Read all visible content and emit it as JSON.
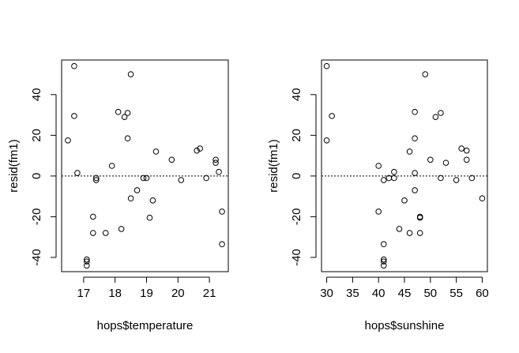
{
  "chart_data": [
    {
      "type": "scatter",
      "xlabel": "hops$temperature",
      "ylabel": "resid(fm1)",
      "xlim": [
        16.3,
        21.6
      ],
      "ylim": [
        -47,
        57
      ],
      "xticks": [
        17,
        18,
        19,
        20,
        21
      ],
      "xtick_labels": [
        "17",
        "18",
        "19",
        "20",
        "21"
      ],
      "yticks": [
        -40,
        -20,
        0,
        20,
        40
      ],
      "ytick_labels": [
        "-40",
        "-20",
        "0",
        "20",
        "40"
      ],
      "hline": 0,
      "points": [
        {
          "x": 16.5,
          "y": 17.5
        },
        {
          "x": 16.7,
          "y": 54
        },
        {
          "x": 16.7,
          "y": 29.5
        },
        {
          "x": 16.8,
          "y": 1.5
        },
        {
          "x": 17.1,
          "y": -41
        },
        {
          "x": 17.1,
          "y": -42
        },
        {
          "x": 17.1,
          "y": -44
        },
        {
          "x": 17.3,
          "y": -20
        },
        {
          "x": 17.3,
          "y": -28
        },
        {
          "x": 17.4,
          "y": -1
        },
        {
          "x": 17.4,
          "y": -2
        },
        {
          "x": 17.7,
          "y": -28
        },
        {
          "x": 17.9,
          "y": 5
        },
        {
          "x": 18.1,
          "y": 31.5
        },
        {
          "x": 18.2,
          "y": -26
        },
        {
          "x": 18.3,
          "y": 29
        },
        {
          "x": 18.4,
          "y": 31
        },
        {
          "x": 18.4,
          "y": 18.5
        },
        {
          "x": 18.5,
          "y": 50
        },
        {
          "x": 18.5,
          "y": -11
        },
        {
          "x": 18.7,
          "y": -7
        },
        {
          "x": 18.9,
          "y": -1
        },
        {
          "x": 19.0,
          "y": -1
        },
        {
          "x": 19.1,
          "y": -20.5
        },
        {
          "x": 19.2,
          "y": -12
        },
        {
          "x": 19.3,
          "y": 12
        },
        {
          "x": 19.8,
          "y": 8
        },
        {
          "x": 20.1,
          "y": -2
        },
        {
          "x": 20.6,
          "y": 12.5
        },
        {
          "x": 20.7,
          "y": 13.5
        },
        {
          "x": 20.9,
          "y": -1
        },
        {
          "x": 21.2,
          "y": 8
        },
        {
          "x": 21.2,
          "y": 6.5
        },
        {
          "x": 21.3,
          "y": 2
        },
        {
          "x": 21.4,
          "y": -17.5
        },
        {
          "x": 21.4,
          "y": -33.5
        }
      ]
    },
    {
      "type": "scatter",
      "xlabel": "hops$sunshine",
      "ylabel": "resid(fm1)",
      "xlim": [
        29,
        61
      ],
      "ylim": [
        -47,
        57
      ],
      "xticks": [
        30,
        35,
        40,
        45,
        50,
        55,
        60
      ],
      "xtick_labels": [
        "30",
        "35",
        "40",
        "45",
        "50",
        "55",
        "60"
      ],
      "yticks": [
        -40,
        -20,
        0,
        20,
        40
      ],
      "ytick_labels": [
        "-40",
        "-20",
        "0",
        "20",
        "40"
      ],
      "hline": 0,
      "points": [
        {
          "x": 30,
          "y": 54
        },
        {
          "x": 30,
          "y": 17.5
        },
        {
          "x": 31,
          "y": 29.5
        },
        {
          "x": 40,
          "y": 5
        },
        {
          "x": 40,
          "y": -17.5
        },
        {
          "x": 41,
          "y": -2
        },
        {
          "x": 41,
          "y": -33.5
        },
        {
          "x": 41,
          "y": -41
        },
        {
          "x": 41,
          "y": -42
        },
        {
          "x": 41,
          "y": -44
        },
        {
          "x": 42,
          "y": -1
        },
        {
          "x": 43,
          "y": -1
        },
        {
          "x": 43,
          "y": 2
        },
        {
          "x": 44,
          "y": -26
        },
        {
          "x": 45,
          "y": -12
        },
        {
          "x": 46,
          "y": 12
        },
        {
          "x": 46,
          "y": -28
        },
        {
          "x": 47,
          "y": 31.5
        },
        {
          "x": 47,
          "y": 18.5
        },
        {
          "x": 47,
          "y": 1.5
        },
        {
          "x": 47,
          "y": -7
        },
        {
          "x": 48,
          "y": -20
        },
        {
          "x": 48,
          "y": -20.5
        },
        {
          "x": 48,
          "y": -28
        },
        {
          "x": 49,
          "y": 50
        },
        {
          "x": 50,
          "y": 8
        },
        {
          "x": 51,
          "y": 29
        },
        {
          "x": 52,
          "y": 31
        },
        {
          "x": 52,
          "y": -1
        },
        {
          "x": 53,
          "y": 6.5
        },
        {
          "x": 55,
          "y": -2
        },
        {
          "x": 56,
          "y": 13.5
        },
        {
          "x": 57,
          "y": 12.5
        },
        {
          "x": 57,
          "y": 8
        },
        {
          "x": 58,
          "y": -1
        },
        {
          "x": 60,
          "y": -11
        }
      ]
    }
  ]
}
